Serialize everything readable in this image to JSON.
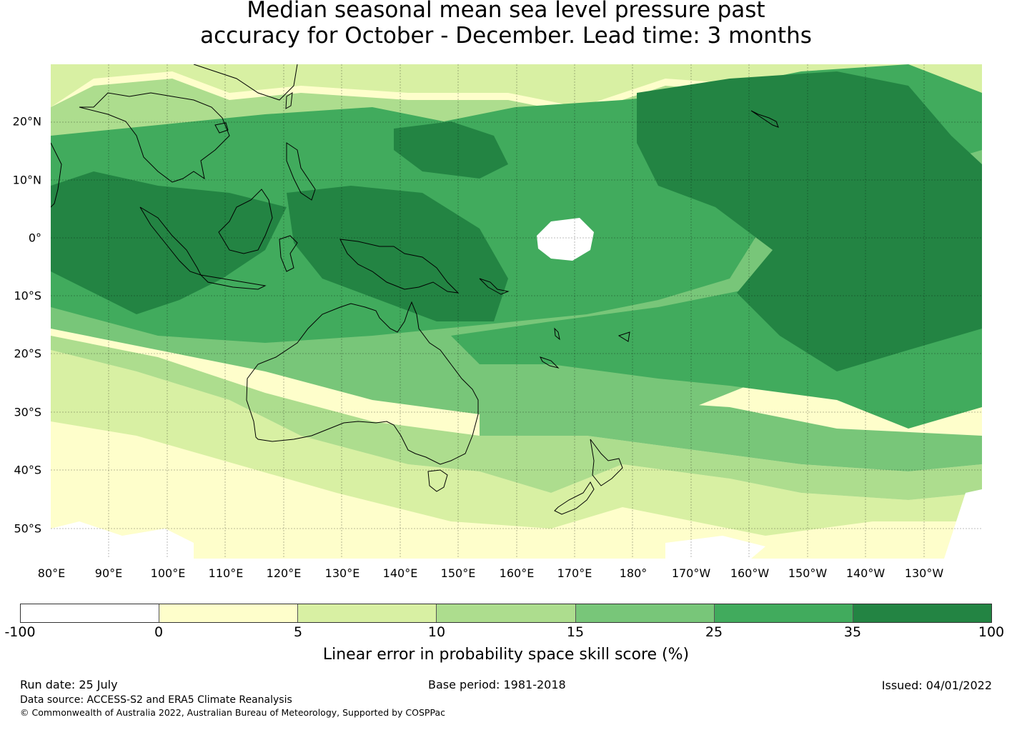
{
  "title": {
    "line1": "Median seasonal mean sea level pressure past",
    "line2": "accuracy for October - December. Lead time: 3 months"
  },
  "map": {
    "lat_labels": [
      "20°N",
      "10°N",
      "0°",
      "10°S",
      "20°S",
      "30°S",
      "40°S",
      "50°S"
    ],
    "lon_labels": [
      "80°E",
      "90°E",
      "100°E",
      "110°E",
      "120°E",
      "130°E",
      "140°E",
      "150°E",
      "160°E",
      "170°E",
      "180°",
      "170°W",
      "160°W",
      "150°W",
      "140°W",
      "130°W"
    ],
    "region": {
      "lon_min": 80,
      "lon_max": 240,
      "lat_min": -55,
      "lat_max": 30
    }
  },
  "colorbar": {
    "label": "Linear error in probability space skill score (%)",
    "ticks": [
      "-100",
      "0",
      "5",
      "10",
      "15",
      "25",
      "35",
      "100"
    ],
    "colors": [
      "#ffffff",
      "#fefecb",
      "#d8f0a3",
      "#addd8e",
      "#78c679",
      "#41ab5d",
      "#238443"
    ]
  },
  "footer": {
    "run_date": "Run date: 25 July",
    "base_period": "Base period: 1981-2018",
    "issued": "Issued: 04/01/2022",
    "data_source": "Data source: ACCESS-S2 and ERA5 Climate Reanalysis",
    "copyright": "© Commonwealth of Australia 2022, Australian Bureau of Meteorology, Supported by COSPPac"
  }
}
